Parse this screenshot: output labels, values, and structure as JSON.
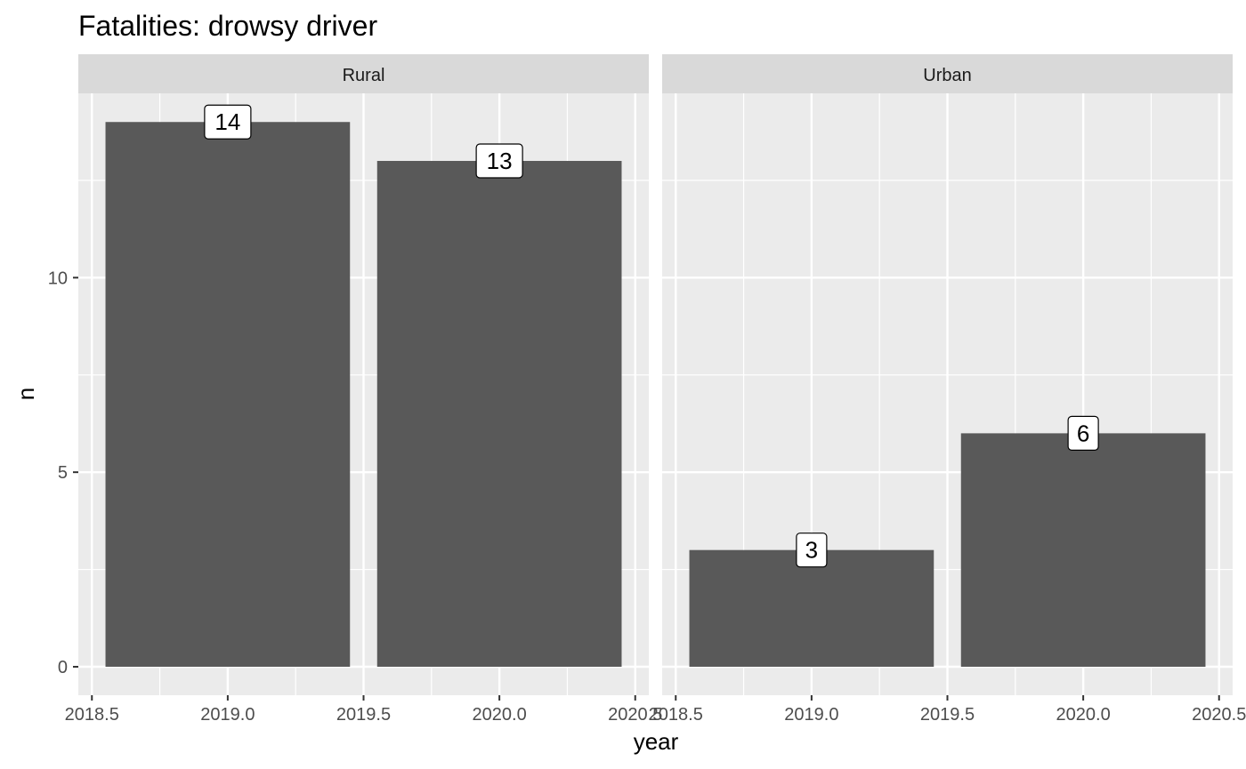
{
  "chart_data": {
    "type": "bar",
    "title": "Fatalities: drowsy driver",
    "xlabel": "year",
    "ylabel": "n",
    "x_ticks": [
      "2018.5",
      "2019.0",
      "2019.5",
      "2020.0",
      "2020.5"
    ],
    "y_ticks": [
      "0",
      "5",
      "10"
    ],
    "xlim": [
      2018.45,
      2020.55
    ],
    "ylim": [
      0,
      14.7
    ],
    "grid": true,
    "bar_color": "#595959",
    "panel_background": "#ebebeb",
    "strip_background": "#d9d9d9",
    "facets": [
      {
        "name": "Rural",
        "x": [
          2019,
          2020
        ],
        "values": [
          14,
          13
        ],
        "labels": [
          "14",
          "13"
        ]
      },
      {
        "name": "Urban",
        "x": [
          2019,
          2020
        ],
        "values": [
          3,
          6
        ],
        "labels": [
          "3",
          "6"
        ]
      }
    ]
  }
}
